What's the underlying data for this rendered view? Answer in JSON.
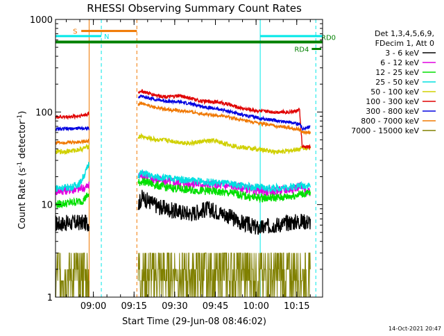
{
  "chart_data": {
    "type": "line",
    "title": "RHESSI Observing Summary Count Rates",
    "xlabel": "Start Time (29-Jun-08 08:46:02)",
    "ylabel_main": "Count Rate (s",
    "ylabel_sup1": "-1",
    "ylabel_mid": " detector",
    "ylabel_sup2": "-1",
    "ylabel_end": ")",
    "ylabel": "Count Rate (s-1 detector-1)",
    "y_scale": "log",
    "ylim": [
      1,
      1000
    ],
    "xlim_minutes": [
      0,
      98.5
    ],
    "x_origin": "08:46:02",
    "x_ticks": [
      {
        "label": "09:00",
        "m": 13.97
      },
      {
        "label": "09:15",
        "m": 28.97
      },
      {
        "label": "09:30",
        "m": 43.97
      },
      {
        "label": "09:45",
        "m": 58.97
      },
      {
        "label": "10:00",
        "m": 73.97
      },
      {
        "label": "10:15",
        "m": 88.97
      }
    ],
    "y_ticks": [
      {
        "label": "1",
        "v": 1
      },
      {
        "label": "10",
        "v": 10
      },
      {
        "label": "100",
        "v": 100
      },
      {
        "label": "1000",
        "v": 1000
      }
    ],
    "legend_header": [
      "Det 1,3,4,5,6,9,",
      "FDecim 1, Att 0"
    ],
    "legend_placement": "right",
    "series": [
      {
        "name": "3 - 6 keV",
        "color": "#000000",
        "x": [
          0,
          9,
          12.4,
          13,
          30.5,
          32,
          34,
          38,
          44,
          50,
          56,
          62,
          68,
          75,
          80,
          84,
          88,
          91,
          94
        ],
        "y": [
          6.2,
          6.4,
          6.3,
          6.5,
          10,
          12,
          11,
          9.5,
          8.5,
          8,
          9,
          8,
          6.5,
          5.5,
          6,
          6.2,
          6.5,
          6.6,
          6.5
        ]
      },
      {
        "name": "6 - 12 keV",
        "color": "#e000e0",
        "x": [
          0,
          6,
          10,
          12.4,
          13,
          30.5,
          32,
          36,
          40,
          48,
          56,
          62,
          66,
          72,
          78,
          84,
          88,
          90,
          93,
          94
        ],
        "y": [
          14,
          14.5,
          15,
          16,
          20,
          20,
          21,
          19,
          18,
          17,
          16.5,
          16,
          16,
          14.5,
          14,
          14.3,
          15,
          16,
          13.5,
          13.5
        ]
      },
      {
        "name": "12 - 25 keV",
        "color": "#00e000",
        "x": [
          0,
          6,
          10,
          12.4,
          13,
          30.5,
          32,
          36,
          40,
          48,
          56,
          62,
          66,
          72,
          78,
          84,
          88,
          90,
          93,
          94
        ],
        "y": [
          10,
          10.5,
          11,
          13,
          17,
          17,
          18,
          16.5,
          15.5,
          14.5,
          14,
          13.5,
          13.2,
          12,
          11.8,
          12,
          12.5,
          13,
          13.2,
          13.2
        ]
      },
      {
        "name": "25 - 50 keV",
        "color": "#00e0e0",
        "x": [
          0,
          6,
          9,
          11,
          12.4,
          13,
          30.5,
          32,
          36,
          40,
          48,
          56,
          62,
          66,
          72,
          78,
          84,
          88,
          90,
          93,
          94
        ],
        "y": [
          15,
          15.5,
          17,
          22,
          28,
          30,
          21,
          22,
          20,
          19.5,
          18.5,
          17.5,
          17,
          16.5,
          15.5,
          15,
          15.2,
          15.8,
          16,
          16.2,
          16.2
        ]
      },
      {
        "name": "50 - 100 keV",
        "color": "#d0d000",
        "x": [
          0,
          6,
          10,
          12.4,
          13,
          30.5,
          31.5,
          34,
          38,
          42,
          46,
          50,
          54,
          58,
          62,
          66,
          70,
          76,
          82,
          86,
          88,
          90,
          91,
          94
        ],
        "y": [
          37,
          38,
          40,
          43,
          45,
          53,
          55,
          52,
          50,
          49,
          47,
          46,
          48,
          49,
          46,
          43,
          41,
          39,
          37,
          38,
          39,
          40,
          41,
          41
        ]
      },
      {
        "name": "100 - 300 keV",
        "color": "#e00000",
        "x": [
          0,
          6,
          10,
          12.4,
          13,
          30.5,
          31.5,
          34,
          38,
          42,
          46,
          50,
          54,
          58,
          62,
          66,
          70,
          76,
          82,
          86,
          88,
          90,
          91,
          94
        ],
        "y": [
          88,
          89,
          92,
          96,
          100,
          160,
          170,
          160,
          150,
          145,
          150,
          140,
          130,
          130,
          125,
          115,
          108,
          102,
          100,
          100,
          102,
          105,
          42,
          42
        ]
      },
      {
        "name": "300 - 800 keV",
        "color": "#0000e0",
        "x": [
          0,
          6,
          10,
          12.4,
          13,
          30.5,
          31.5,
          34,
          38,
          42,
          46,
          50,
          54,
          58,
          62,
          66,
          70,
          76,
          82,
          86,
          88,
          90,
          91,
          94
        ],
        "y": [
          65,
          66,
          67,
          66,
          65,
          140,
          150,
          142,
          135,
          130,
          128,
          122,
          115,
          110,
          105,
          98,
          92,
          85,
          80,
          78,
          76,
          74,
          66,
          70
        ]
      },
      {
        "name": "800 - 7000 keV",
        "color": "#f07800",
        "x": [
          0,
          6,
          10,
          12.4,
          13,
          30.5,
          31.5,
          34,
          38,
          42,
          46,
          50,
          54,
          58,
          62,
          66,
          70,
          76,
          82,
          86,
          88,
          90,
          91,
          94
        ],
        "y": [
          47,
          47,
          48,
          49,
          50,
          120,
          125,
          118,
          110,
          106,
          103,
          100,
          96,
          93,
          90,
          85,
          80,
          75,
          70,
          68,
          66,
          65,
          60,
          60
        ]
      },
      {
        "name": "7000 - 15000 keV",
        "color": "#808000",
        "x": [
          0,
          4,
          6,
          8,
          10,
          12.4,
          13,
          30.5,
          32,
          36,
          40,
          44,
          48,
          52,
          56,
          60,
          64,
          68,
          72,
          76,
          80,
          84,
          88,
          90,
          93,
          94
        ],
        "y": [
          1,
          2,
          1,
          1.5,
          1,
          2,
          3,
          1.5,
          1,
          2,
          1.5,
          1,
          2,
          3,
          2.5,
          2,
          1.5,
          2,
          1.5,
          1,
          2,
          1.5,
          2,
          1.5,
          2,
          1
        ]
      }
    ],
    "annotations": {
      "saa": {
        "label": "S",
        "color": "#f07800",
        "from": 9.5,
        "to": 30,
        "value": 750
      },
      "night": [
        {
          "label": "N",
          "color": "#00e8e8",
          "from": 0,
          "to": 16.9,
          "value": 660
        },
        {
          "label": "",
          "color": "#00e8e8",
          "from": 75.5,
          "to": 98.5,
          "value": 660
        }
      ],
      "rd0": {
        "label": "RD0",
        "color": "#008000",
        "from": 0,
        "to": 98.5,
        "value": 570
      },
      "rd4": {
        "label": "RD4",
        "color": "#008000",
        "from": 94.5,
        "to": 98,
        "value": 480
      },
      "vlines": [
        {
          "m": 12.4,
          "color": "#f07800",
          "dash": false
        },
        {
          "m": 16.9,
          "color": "#00e8e8",
          "dash": true
        },
        {
          "m": 30.0,
          "color": "#f07800",
          "dash": true
        },
        {
          "m": 75.5,
          "color": "#00e8e8",
          "dash": false
        },
        {
          "m": 96.0,
          "color": "#00e8e8",
          "dash": true
        }
      ]
    }
  },
  "footer": {
    "timestamp": "14-Oct-2021 20:47"
  },
  "gaps": [
    [
      12.4,
      30.5
    ],
    [
      91.0,
      91.05
    ]
  ]
}
